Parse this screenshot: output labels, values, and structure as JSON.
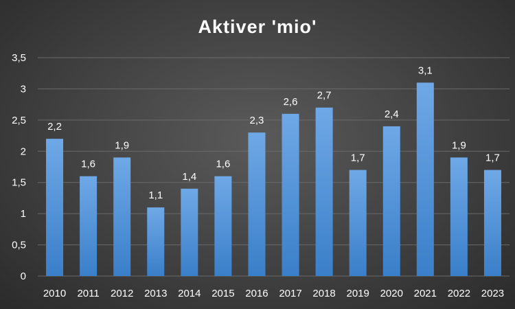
{
  "chart_data": {
    "type": "bar",
    "title": "Aktiver 'mio'",
    "xlabel": "",
    "ylabel": "",
    "categories": [
      "2010",
      "2011",
      "2012",
      "2013",
      "2014",
      "2015",
      "2016",
      "2017",
      "2018",
      "2019",
      "2020",
      "2021",
      "2022",
      "2023"
    ],
    "values": [
      2.2,
      1.6,
      1.9,
      1.1,
      1.4,
      1.6,
      2.3,
      2.6,
      2.7,
      1.7,
      2.4,
      3.1,
      1.9,
      1.7
    ],
    "data_labels": [
      "2,2",
      "1,6",
      "1,9",
      "1,1",
      "1,4",
      "1,6",
      "2,3",
      "2,6",
      "2,7",
      "1,7",
      "2,4",
      "3,1",
      "1,9",
      "1,7"
    ],
    "ylim": [
      0,
      3.5
    ],
    "yticks": [
      0,
      0.5,
      1,
      1.5,
      2,
      2.5,
      3,
      3.5
    ],
    "ytick_labels": [
      "0",
      "0,5",
      "1",
      "1,5",
      "2",
      "2,5",
      "3",
      "3,5"
    ],
    "grid": true,
    "legend": "none",
    "colors": {
      "bar_top": "#6fa8e6",
      "bar_bottom": "#3a7fc9",
      "grid": "#6a6a6a",
      "text": "#ffffff"
    }
  }
}
